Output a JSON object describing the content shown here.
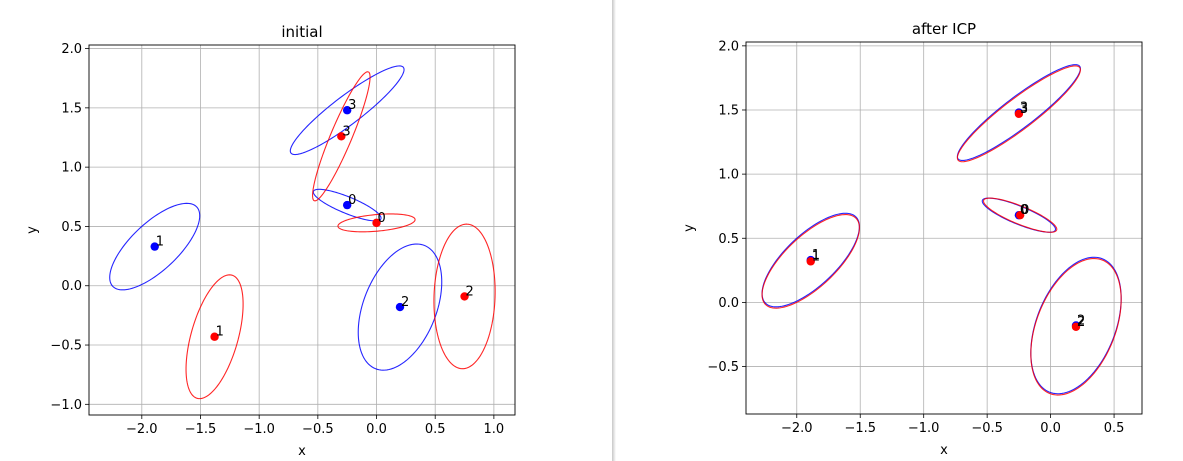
{
  "chart_data": [
    {
      "type": "scatter",
      "title": "initial",
      "xlabel": "x",
      "ylabel": "y",
      "xlim": [
        -2.45,
        1.18
      ],
      "ylim": [
        -1.09,
        2.03
      ],
      "xticks": [
        -2.0,
        -1.5,
        -1.0,
        -0.5,
        0.0,
        0.5,
        1.0
      ],
      "xtick_labels": [
        "−2.0",
        "−1.5",
        "−1.0",
        "−0.5",
        "0.0",
        "0.5",
        "1.0"
      ],
      "yticks": [
        -1.0,
        -0.5,
        0.0,
        0.5,
        1.0,
        1.5,
        2.0
      ],
      "ytick_labels": [
        "−1.0",
        "−0.5",
        "0.0",
        "0.5",
        "1.0",
        "1.5",
        "2.0"
      ],
      "grid": true,
      "series": [
        {
          "color": "#0000ff",
          "points": [
            {
              "label": "0",
              "x": -0.25,
              "y": 0.68
            },
            {
              "label": "1",
              "x": -1.89,
              "y": 0.33
            },
            {
              "label": "2",
              "x": 0.2,
              "y": -0.18
            },
            {
              "label": "3",
              "x": -0.25,
              "y": 1.48
            }
          ],
          "ellipses": [
            {
              "cx": -0.25,
              "cy": 0.68,
              "rx": 0.31,
              "ry": 0.07,
              "angle": -22
            },
            {
              "cx": -1.89,
              "cy": 0.33,
              "rx": 0.49,
              "ry": 0.2,
              "angle": 43
            },
            {
              "cx": 0.2,
              "cy": -0.18,
              "rx": 0.56,
              "ry": 0.31,
              "angle": 68
            },
            {
              "cx": -0.25,
              "cy": 1.48,
              "rx": 0.6,
              "ry": 0.12,
              "angle": 37
            }
          ]
        },
        {
          "color": "#ff0000",
          "points": [
            {
              "label": "0",
              "x": 0.0,
              "y": 0.53
            },
            {
              "label": "1",
              "x": -1.38,
              "y": -0.43
            },
            {
              "label": "2",
              "x": 0.75,
              "y": -0.09
            },
            {
              "label": "3",
              "x": -0.3,
              "y": 1.26
            }
          ],
          "ellipses": [
            {
              "cx": 0.0,
              "cy": 0.53,
              "rx": 0.33,
              "ry": 0.07,
              "angle": 5
            },
            {
              "cx": -1.38,
              "cy": -0.43,
              "rx": 0.54,
              "ry": 0.2,
              "angle": 74
            },
            {
              "cx": 0.75,
              "cy": -0.09,
              "rx": 0.61,
              "ry": 0.26,
              "angle": 88
            },
            {
              "cx": -0.3,
              "cy": 1.26,
              "rx": 0.59,
              "ry": 0.09,
              "angle": 67
            }
          ]
        }
      ]
    },
    {
      "type": "scatter",
      "title": "after ICP",
      "xlabel": "x",
      "ylabel": "y",
      "xlim": [
        -2.4,
        0.72
      ],
      "ylim": [
        -0.87,
        2.03
      ],
      "xticks": [
        -2.0,
        -1.5,
        -1.0,
        -0.5,
        0.0,
        0.5
      ],
      "xtick_labels": [
        "−2.0",
        "−1.5",
        "−1.0",
        "−0.5",
        "0.0",
        "0.5"
      ],
      "yticks": [
        -0.5,
        0.0,
        0.5,
        1.0,
        1.5,
        2.0
      ],
      "ytick_labels": [
        "−0.5",
        "0.0",
        "0.5",
        "1.0",
        "1.5",
        "2.0"
      ],
      "grid": true,
      "series": [
        {
          "color": "#0000ff",
          "points": [
            {
              "label": "0",
              "x": -0.25,
              "y": 0.68
            },
            {
              "label": "1",
              "x": -1.89,
              "y": 0.33
            },
            {
              "label": "2",
              "x": 0.2,
              "y": -0.18
            },
            {
              "label": "3",
              "x": -0.25,
              "y": 1.48
            }
          ],
          "ellipses": [
            {
              "cx": -0.25,
              "cy": 0.68,
              "rx": 0.31,
              "ry": 0.07,
              "angle": -22
            },
            {
              "cx": -1.89,
              "cy": 0.33,
              "rx": 0.49,
              "ry": 0.2,
              "angle": 43
            },
            {
              "cx": 0.2,
              "cy": -0.18,
              "rx": 0.56,
              "ry": 0.31,
              "angle": 68
            },
            {
              "cx": -0.25,
              "cy": 1.48,
              "rx": 0.6,
              "ry": 0.12,
              "angle": 37
            }
          ]
        },
        {
          "color": "#ff0000",
          "points": [
            {
              "label": "0",
              "x": -0.24,
              "y": 0.68
            },
            {
              "label": "1",
              "x": -1.89,
              "y": 0.32
            },
            {
              "label": "2",
              "x": 0.2,
              "y": -0.19
            },
            {
              "label": "3",
              "x": -0.25,
              "y": 1.47
            }
          ],
          "ellipses": [
            {
              "cx": -0.24,
              "cy": 0.68,
              "rx": 0.31,
              "ry": 0.07,
              "angle": -22
            },
            {
              "cx": -1.89,
              "cy": 0.32,
              "rx": 0.49,
              "ry": 0.2,
              "angle": 43
            },
            {
              "cx": 0.2,
              "cy": -0.19,
              "rx": 0.56,
              "ry": 0.31,
              "angle": 68
            },
            {
              "cx": -0.25,
              "cy": 1.47,
              "rx": 0.6,
              "ry": 0.12,
              "angle": 37
            }
          ]
        }
      ]
    }
  ]
}
